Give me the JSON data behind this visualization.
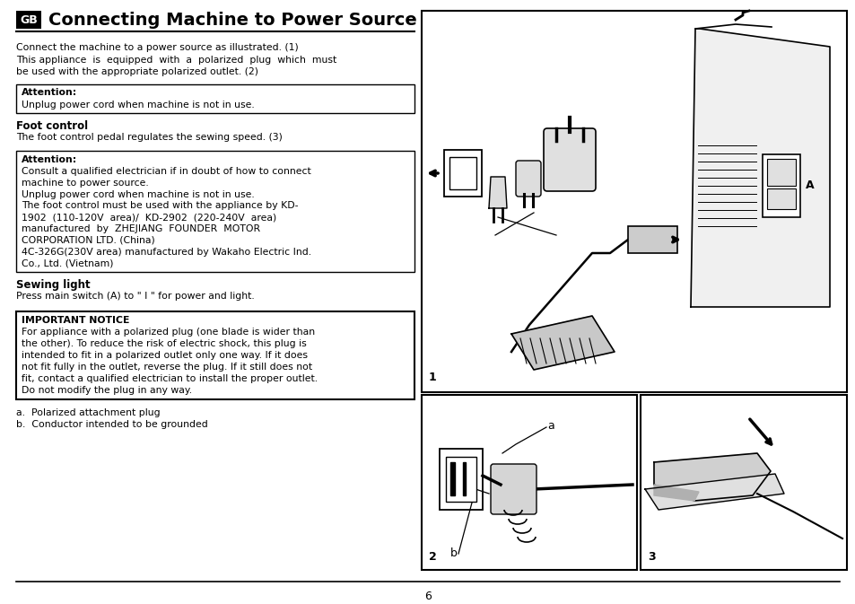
{
  "bg_color": "#ffffff",
  "title": "Connecting Machine to Power Source",
  "gb_label": "GB",
  "page_number": "6",
  "intro_line1": "Connect the machine to a power source as illustrated. (1)",
  "intro_line2": "This appliance  is  equipped  with  a  polarized  plug  which  must",
  "intro_line3": "be used with the appropriate polarized outlet. (2)",
  "attn1_title": "Attention:",
  "attn1_body": "Unplug power cord when machine is not in use.",
  "foot_title": "Foot control",
  "foot_body": "The foot control pedal regulates the sewing speed. (3)",
  "attn2_title": "Attention:",
  "attn2_lines": [
    "Consult a qualified electrician if in doubt of how to connect",
    "machine to power source.",
    "Unplug power cord when machine is not in use.",
    "The foot control must be used with the appliance by KD-",
    "1902  (110-120V  area)/  KD-2902  (220-240V  area)",
    "manufactured  by  ZHEJIANG  FOUNDER  MOTOR",
    "CORPORATION LTD. (China)",
    "4C-326G(230V area) manufactured by Wakaho Electric Ind.",
    "Co., Ltd. (Vietnam)"
  ],
  "sewing_title": "Sewing light",
  "sewing_body": "Press main switch (A) to \" I \" for power and light.",
  "imp_title": "IMPORTANT NOTICE",
  "imp_lines": [
    "For appliance with a polarized plug (one blade is wider than",
    "the other). To reduce the risk of electric shock, this plug is",
    "intended to fit in a polarized outlet only one way. If it does",
    "not fit fully in the outlet, reverse the plug. If it still does not",
    "fit, contact a qualified electrician to install the proper outlet.",
    "Do not modify the plug in any way."
  ],
  "list_a": "a.  Polarized attachment plug",
  "list_b": "b.  Conductor intended to be grounded"
}
